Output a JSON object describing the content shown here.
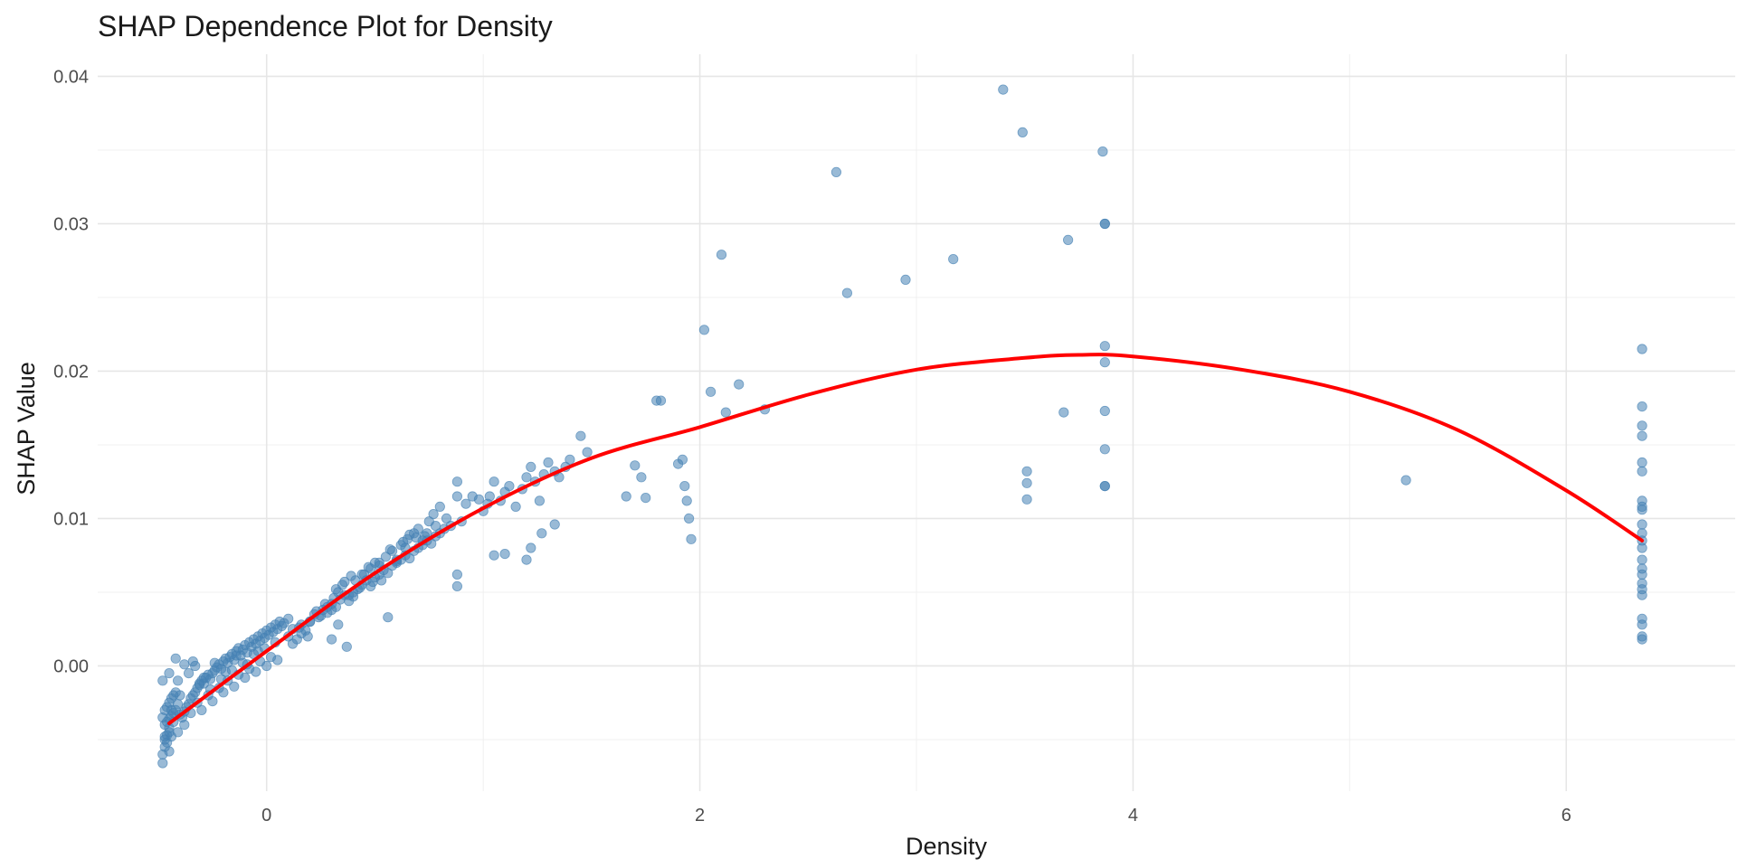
{
  "chart_data": {
    "type": "scatter",
    "title": "SHAP Dependence Plot for Density",
    "xlabel": "Density",
    "ylabel": "SHAP Value",
    "xlim": [
      -0.78,
      6.78
    ],
    "ylim": [
      -0.0085,
      0.0415
    ],
    "x_ticks": [
      0,
      2,
      4,
      6
    ],
    "x_tick_labels": [
      "0",
      "2",
      "4",
      "6"
    ],
    "y_ticks": [
      0.0,
      0.01,
      0.02,
      0.03,
      0.04
    ],
    "y_tick_labels": [
      "0.00",
      "0.01",
      "0.02",
      "0.03",
      "0.04"
    ],
    "grid": true,
    "point_color": "#4682b4",
    "trend_color": "#ff0000",
    "trend_line": {
      "x": [
        -0.45,
        0.0,
        0.5,
        1.0,
        1.5,
        2.0,
        2.5,
        3.0,
        3.5,
        3.75,
        4.0,
        4.5,
        5.0,
        5.5,
        6.0,
        6.35
      ],
      "y": [
        -0.0039,
        0.001,
        0.0063,
        0.0107,
        0.0141,
        0.0162,
        0.0184,
        0.0201,
        0.0209,
        0.0211,
        0.021,
        0.0201,
        0.0186,
        0.016,
        0.0119,
        0.0085
      ]
    },
    "points": {
      "x": [
        -0.48,
        -0.48,
        -0.47,
        -0.47,
        -0.46,
        -0.46,
        -0.45,
        -0.45,
        -0.44,
        -0.47,
        -0.46,
        -0.45,
        -0.44,
        -0.43,
        -0.42,
        -0.48,
        -0.47,
        -0.46,
        -0.45,
        -0.44,
        -0.43,
        -0.42,
        -0.41,
        -0.4,
        -0.48,
        -0.45,
        -0.42,
        -0.39,
        -0.38,
        -0.37,
        -0.36,
        -0.35,
        -0.34,
        -0.33,
        -0.32,
        -0.31,
        -0.3,
        -0.29,
        -0.28,
        -0.27,
        -0.26,
        -0.25,
        -0.24,
        -0.23,
        -0.22,
        -0.21,
        -0.2,
        -0.19,
        -0.18,
        -0.17,
        -0.16,
        -0.15,
        -0.14,
        -0.13,
        -0.12,
        -0.11,
        -0.1,
        -0.09,
        -0.08,
        -0.07,
        -0.06,
        -0.05,
        -0.04,
        -0.03,
        -0.02,
        -0.01,
        0.0,
        0.01,
        0.02,
        0.03,
        0.04,
        0.05,
        0.06,
        0.07,
        0.08,
        0.1,
        -0.38,
        -0.35,
        -0.32,
        -0.3,
        -0.27,
        -0.25,
        -0.22,
        -0.2,
        -0.18,
        -0.15,
        -0.13,
        -0.1,
        -0.08,
        -0.05,
        -0.03,
        0.0,
        0.02,
        0.05,
        -0.36,
        -0.33,
        -0.29,
        -0.24,
        -0.19,
        -0.14,
        -0.09,
        -0.04,
        -0.41,
        -0.43,
        -0.4,
        -0.38,
        -0.34,
        -0.31,
        -0.26,
        -0.21,
        -0.16,
        -0.11,
        -0.06,
        -0.01,
        0.04,
        -0.45,
        -0.47,
        -0.44,
        -0.41,
        0.1,
        0.12,
        0.14,
        0.16,
        0.18,
        0.2,
        0.22,
        0.24,
        0.26,
        0.28,
        0.3,
        0.32,
        0.34,
        0.36,
        0.38,
        0.4,
        0.42,
        0.44,
        0.46,
        0.48,
        0.5,
        0.52,
        0.54,
        0.56,
        0.58,
        0.6,
        0.62,
        0.64,
        0.66,
        0.68,
        0.7,
        0.72,
        0.74,
        0.76,
        0.78,
        0.8,
        0.82,
        0.85,
        0.12,
        0.16,
        0.2,
        0.25,
        0.28,
        0.31,
        0.33,
        0.35,
        0.38,
        0.41,
        0.45,
        0.48,
        0.52,
        0.55,
        0.58,
        0.62,
        0.65,
        0.68,
        0.72,
        0.75,
        0.15,
        0.19,
        0.23,
        0.27,
        0.3,
        0.32,
        0.36,
        0.39,
        0.43,
        0.47,
        0.5,
        0.53,
        0.57,
        0.6,
        0.63,
        0.66,
        0.7,
        0.73,
        0.77,
        0.8,
        0.3,
        0.33,
        0.37,
        0.4,
        0.44,
        0.49,
        0.52,
        0.56,
        0.6,
        0.64,
        0.69,
        0.74,
        0.78,
        0.83,
        0.88,
        0.88,
        0.88,
        0.88,
        0.9,
        0.92,
        0.95,
        0.98,
        1.0,
        1.02,
        1.03,
        1.05,
        1.08,
        1.1,
        1.12,
        1.15,
        1.18,
        1.2,
        1.22,
        1.24,
        1.26,
        1.28,
        1.3,
        1.33,
        1.35,
        1.38,
        1.4,
        1.45,
        1.48,
        1.05,
        1.1,
        1.2,
        1.22,
        1.27,
        1.33,
        1.7,
        1.75,
        1.66,
        1.73,
        1.8,
        1.82,
        1.9,
        1.92,
        1.93,
        1.94,
        1.95,
        1.96,
        2.02,
        2.05,
        2.1,
        2.12,
        2.18,
        2.3,
        2.63,
        2.68,
        2.95,
        3.17,
        3.4,
        3.49,
        3.7,
        3.86,
        3.87,
        3.87,
        3.87,
        3.87,
        3.87,
        3.87,
        3.87,
        3.87,
        3.51,
        3.51,
        3.51,
        3.68,
        5.26,
        6.35,
        6.35,
        6.35,
        6.35,
        6.35,
        6.35,
        6.35,
        6.35,
        6.35,
        6.35,
        6.35,
        6.35,
        6.35,
        6.35,
        6.35,
        6.35,
        6.35,
        6.35,
        6.35,
        6.35,
        6.35,
        6.35,
        6.35
      ],
      "y": [
        -0.0066,
        -0.006,
        -0.0055,
        -0.005,
        -0.0047,
        -0.0052,
        -0.0045,
        -0.0042,
        -0.0048,
        -0.004,
        -0.0038,
        -0.0036,
        -0.0034,
        -0.0032,
        -0.003,
        -0.0035,
        -0.003,
        -0.0028,
        -0.0025,
        -0.0022,
        -0.002,
        -0.0018,
        -0.0026,
        -0.0033,
        -0.001,
        -0.0005,
        0.0005,
        -0.0035,
        -0.0031,
        -0.0028,
        -0.0026,
        -0.0022,
        -0.002,
        -0.0018,
        -0.0015,
        -0.0013,
        -0.001,
        -0.0012,
        -0.0008,
        -0.0006,
        -0.0009,
        -0.0005,
        -0.0003,
        -0.0001,
        0.0001,
        -0.0002,
        0.0003,
        0.0005,
        0.0002,
        0.0006,
        0.0008,
        0.0004,
        0.001,
        0.0012,
        0.0007,
        0.0011,
        0.0014,
        0.0009,
        0.0016,
        0.0013,
        0.0018,
        0.0015,
        0.002,
        0.0017,
        0.0022,
        0.0019,
        0.0024,
        0.0021,
        0.0026,
        0.0023,
        0.0028,
        0.0025,
        0.003,
        0.0027,
        0.0029,
        0.0032,
        -0.004,
        -0.0032,
        -0.0025,
        -0.003,
        -0.002,
        -0.0024,
        -0.0015,
        -0.0018,
        -0.001,
        -0.0014,
        -0.0006,
        -0.0008,
        -0.0002,
        -0.0004,
        0.0003,
        0.0,
        0.0006,
        0.0004,
        -0.0005,
        0.0,
        -0.0008,
        0.0002,
        -0.0004,
        0.0007,
        0.0001,
        0.001,
        -0.0045,
        -0.0038,
        -0.002,
        0.0001,
        0.0003,
        -0.0012,
        -0.0016,
        -0.0009,
        -0.0003,
        0.0002,
        0.0008,
        0.0012,
        0.0016,
        -0.0058,
        -0.0048,
        -0.003,
        -0.001,
        0.002,
        0.0025,
        0.0018,
        0.0028,
        0.0024,
        0.003,
        0.0035,
        0.0033,
        0.0038,
        0.0036,
        0.0042,
        0.004,
        0.0045,
        0.0048,
        0.0044,
        0.005,
        0.0052,
        0.0055,
        0.0058,
        0.0054,
        0.006,
        0.0062,
        0.0065,
        0.0063,
        0.0068,
        0.007,
        0.0072,
        0.0075,
        0.0073,
        0.0078,
        0.008,
        0.0082,
        0.0085,
        0.0083,
        0.0088,
        0.009,
        0.0093,
        0.0095,
        0.0015,
        0.0022,
        0.003,
        0.0034,
        0.004,
        0.0046,
        0.005,
        0.0055,
        0.0048,
        0.0058,
        0.0062,
        0.0066,
        0.007,
        0.0074,
        0.0078,
        0.0082,
        0.0086,
        0.009,
        0.0085,
        0.0098,
        0.0026,
        0.002,
        0.0037,
        0.0042,
        0.0038,
        0.0052,
        0.0057,
        0.0061,
        0.0053,
        0.0067,
        0.007,
        0.0058,
        0.0079,
        0.0072,
        0.0084,
        0.0089,
        0.0093,
        0.0088,
        0.0103,
        0.0108,
        0.0018,
        0.0028,
        0.0013,
        0.0047,
        0.0062,
        0.0057,
        0.0068,
        0.0033,
        0.0071,
        0.008,
        0.0087,
        0.009,
        0.0095,
        0.01,
        0.0125,
        0.0115,
        0.0062,
        0.0054,
        0.0098,
        0.011,
        0.0115,
        0.0113,
        0.0105,
        0.011,
        0.0115,
        0.0125,
        0.0112,
        0.0118,
        0.0122,
        0.0108,
        0.012,
        0.0128,
        0.0135,
        0.0125,
        0.0112,
        0.013,
        0.0138,
        0.0132,
        0.0128,
        0.0135,
        0.014,
        0.0156,
        0.0145,
        0.0075,
        0.0076,
        0.0072,
        0.008,
        0.009,
        0.0096,
        0.0136,
        0.0114,
        0.0115,
        0.0128,
        0.018,
        0.018,
        0.0137,
        0.014,
        0.0122,
        0.0112,
        0.01,
        0.0086,
        0.0228,
        0.0186,
        0.0279,
        0.0172,
        0.0191,
        0.0174,
        0.0335,
        0.0253,
        0.0262,
        0.0276,
        0.0391,
        0.0362,
        0.0289,
        0.0349,
        0.03,
        0.03,
        0.0217,
        0.0206,
        0.0173,
        0.0147,
        0.0122,
        0.0122,
        0.0132,
        0.0124,
        0.0113,
        0.0172,
        0.0126,
        0.0215,
        0.0176,
        0.0163,
        0.0156,
        0.0138,
        0.0132,
        0.0112,
        0.0108,
        0.0106,
        0.0096,
        0.009,
        0.0085,
        0.008,
        0.0072,
        0.0066,
        0.0062,
        0.0056,
        0.0052,
        0.0048,
        0.0032,
        0.0028,
        0.002,
        0.0018
      ]
    }
  }
}
